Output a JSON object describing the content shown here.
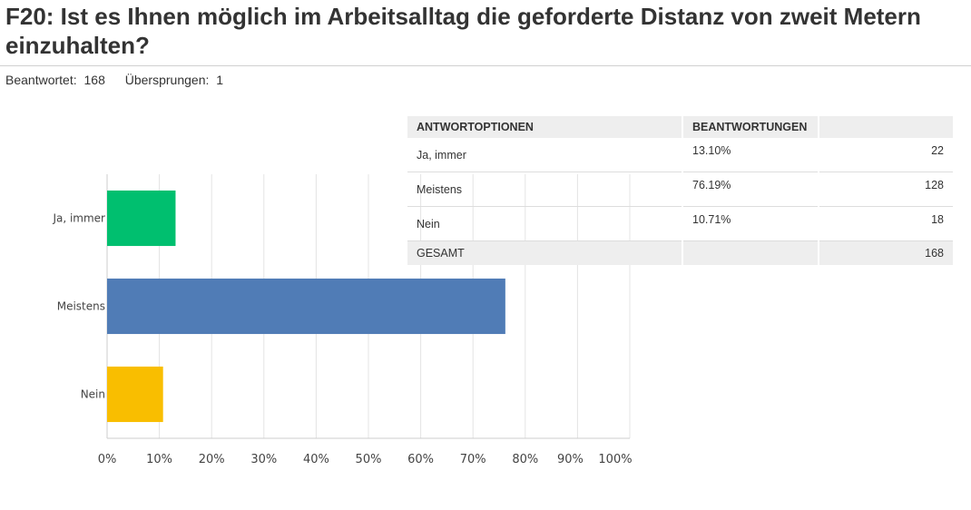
{
  "question": {
    "title": "F20: Ist es Ihnen möglich im Arbeitsalltag die geforderte Distanz von zweit Metern einzuhalten?",
    "answered_label": "Beantwortet:",
    "answered_value": "168",
    "skipped_label": "Übersprungen:",
    "skipped_value": "1"
  },
  "chart_data": {
    "type": "bar",
    "orientation": "horizontal",
    "categories": [
      "Ja, immer",
      "Meistens",
      "Nein"
    ],
    "values": [
      13.1,
      76.19,
      10.71
    ],
    "colors": [
      "#00bf6f",
      "#507cb6",
      "#f9be00"
    ],
    "xlim": [
      0,
      100
    ],
    "xticks": [
      "0%",
      "10%",
      "20%",
      "30%",
      "40%",
      "50%",
      "60%",
      "70%",
      "80%",
      "90%",
      "100%"
    ],
    "grid": true
  },
  "table": {
    "headers": [
      "ANTWORTOPTIONEN",
      "BEANTWORTUNGEN",
      ""
    ],
    "rows": [
      {
        "option": "Ja, immer",
        "percent": "13.10%",
        "count": "22"
      },
      {
        "option": "Meistens",
        "percent": "76.19%",
        "count": "128"
      },
      {
        "option": "Nein",
        "percent": "10.71%",
        "count": "18"
      }
    ],
    "total": {
      "label": "GESAMT",
      "count": "168"
    }
  }
}
